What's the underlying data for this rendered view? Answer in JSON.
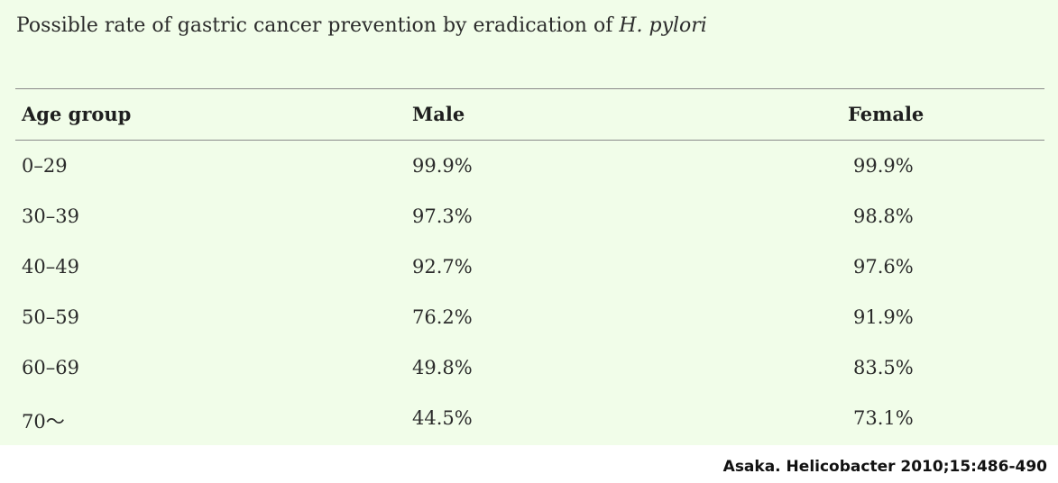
{
  "title": {
    "text": "Possible rate of gastric cancer prevention by eradication of ",
    "italic": "H. pylori"
  },
  "table": {
    "headers": [
      "Age group",
      "Male",
      "Female"
    ],
    "rows": [
      [
        "0–29",
        "99.9%",
        "99.9%"
      ],
      [
        "30–39",
        "97.3%",
        "98.8%"
      ],
      [
        "40–49",
        "92.7%",
        "97.6%"
      ],
      [
        "50–59",
        "76.2%",
        "91.9%"
      ],
      [
        "60–69",
        "49.8%",
        "83.5%"
      ],
      [
        "70～",
        "44.5%",
        "73.1%"
      ]
    ]
  },
  "citation": "Asaka. Helicobacter 2010;15:486-490",
  "colors": {
    "panel_background": "#f1fde9",
    "rule": "#8a8a8a"
  }
}
